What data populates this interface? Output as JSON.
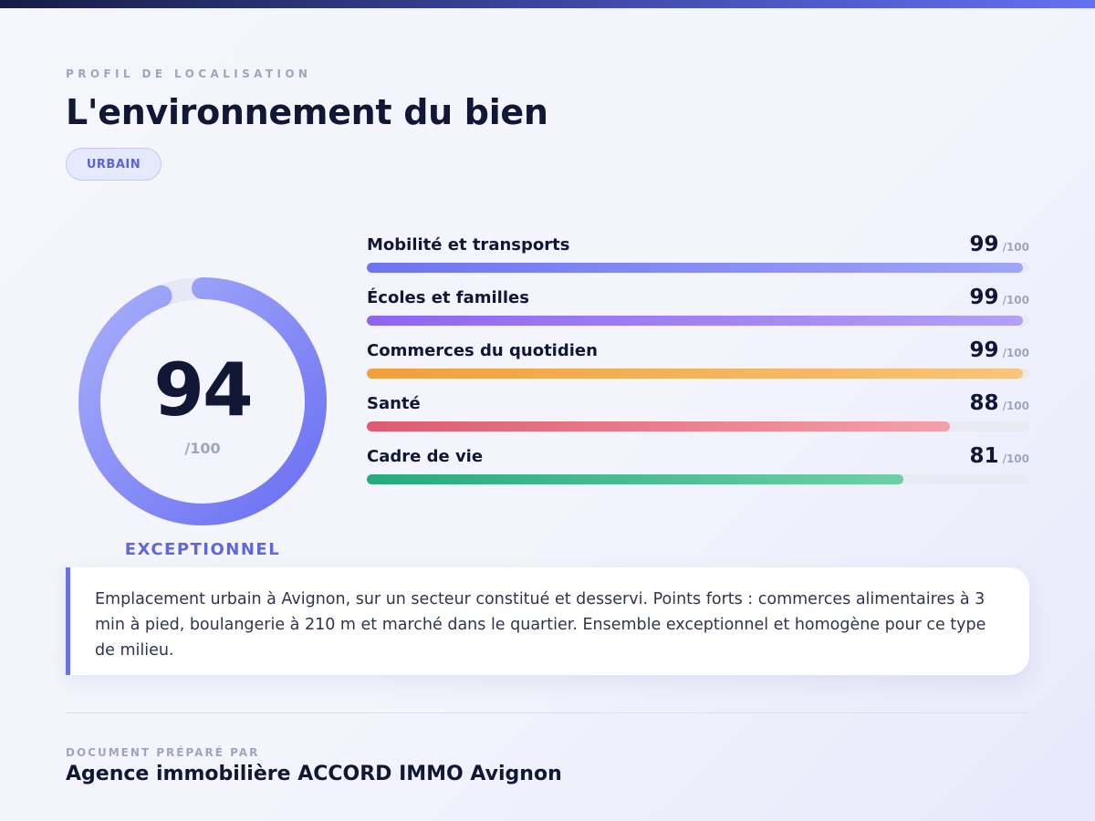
{
  "header": {
    "eyebrow": "PROFIL DE LOCALISATION",
    "title": "L'environnement du bien",
    "badge": "URBAIN"
  },
  "score": {
    "value": "94",
    "max_label": "/100",
    "percent": 94,
    "rating": "EXCEPTIONNEL",
    "gradient_colors": [
      "#6a6ff2",
      "#a7aefa"
    ]
  },
  "metrics": [
    {
      "label": "Mobilité et transports",
      "value": "99",
      "max_label": "/100",
      "percent": 99,
      "colors": [
        "#6e73f0",
        "#9ea6f6"
      ]
    },
    {
      "label": "Écoles et familles",
      "value": "99",
      "max_label": "/100",
      "percent": 99,
      "colors": [
        "#8b67ef",
        "#b4a0f6"
      ]
    },
    {
      "label": "Commerces du quotidien",
      "value": "99",
      "max_label": "/100",
      "percent": 99,
      "colors": [
        "#f0a03b",
        "#f8c57a"
      ]
    },
    {
      "label": "Santé",
      "value": "88",
      "max_label": "/100",
      "percent": 88,
      "colors": [
        "#dd5b70",
        "#f4a0aa"
      ]
    },
    {
      "label": "Cadre de vie",
      "value": "81",
      "max_label": "/100",
      "percent": 81,
      "colors": [
        "#26a97e",
        "#6fcfa6"
      ]
    }
  ],
  "summary": {
    "text": "Emplacement urbain à Avignon, sur un secteur constitué et desservi. Points forts : commerces alimentaires à 3 min à pied, boulangerie à 210 m et marché dans le quartier. Ensemble exceptionnel et homogène pour ce type de milieu."
  },
  "footer": {
    "caption": "DOCUMENT PRÉPARÉ PAR",
    "agency": "Agence immobilière ACCORD IMMO Avignon"
  }
}
